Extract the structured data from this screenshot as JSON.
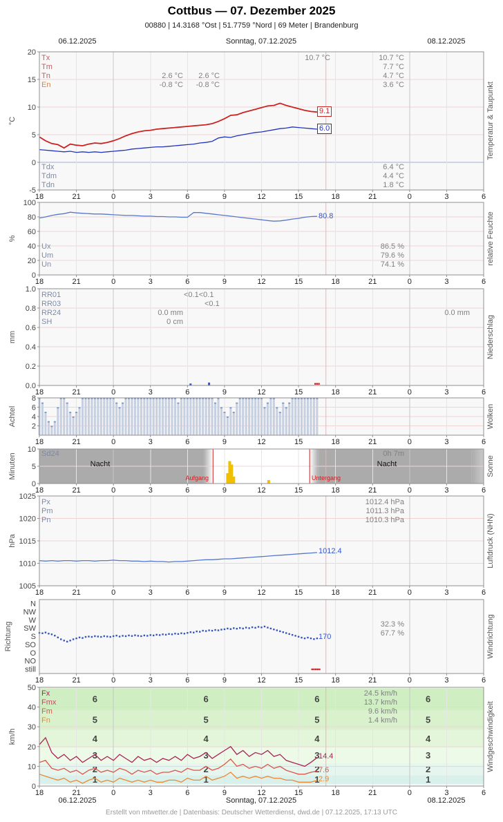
{
  "header": {
    "title": "Cottbus  —  07. Dezember 2025",
    "subtitle": "00880  |  14.3168 °Ost  |  51.7759 °Nord  |  69 Meter  |  Brandenburg"
  },
  "date_axis": {
    "left": "06.12.2025",
    "center": "Sonntag, 07.12.2025",
    "right": "08.12.2025"
  },
  "footer": "Erstellt von mtwetter.de | Datenbasis: Deutscher Wetterdienst, dwd.de | 07.12.2025, 17:13 UTC",
  "x_tick_hours": [
    0,
    3,
    6,
    9,
    12,
    15,
    18,
    21,
    24,
    27,
    30,
    33,
    36
  ],
  "x_tick_labels": [
    "18",
    "21",
    "0",
    "3",
    "6",
    "9",
    "12",
    "15",
    "18",
    "21",
    "0",
    "3",
    "6"
  ],
  "now_line_hour": 23.22,
  "colors": {
    "temperature": "#cc2222",
    "dewpoint": "#2233bb",
    "humidity_line": "#5577cc",
    "pressure_line": "#5577cc",
    "wind_direction_dot": "#3355bb",
    "gust": "#aa2255",
    "mean_wind": "#dd5544",
    "min_wind": "#ee8833",
    "sun_bar": "#f0c000",
    "cloud_bar": "#c7d0e0",
    "cloud_cap": "#7b96c8",
    "now_line": "#ffaaaa",
    "night": "#ababab",
    "accent_red": "#cc2222"
  },
  "chart_data": [
    {
      "id": "temperature",
      "type": "line",
      "title": "Temperatur & Taupunkt",
      "ylabel": "°C",
      "ylim": [
        -5,
        20
      ],
      "yticks": [
        -5,
        0,
        5,
        10,
        15,
        20
      ],
      "x_step_hours": 0.5,
      "series": [
        {
          "name": "Temperatur",
          "color": "#cc2222",
          "end_label": "9.1",
          "values": [
            4.6,
            3.9,
            3.4,
            3.2,
            2.6,
            3.3,
            3.1,
            3.0,
            3.3,
            3.5,
            3.4,
            3.6,
            3.9,
            4.3,
            4.8,
            5.2,
            5.5,
            5.7,
            5.8,
            6.0,
            6.1,
            6.2,
            6.3,
            6.4,
            6.5,
            6.6,
            6.7,
            6.8,
            7.0,
            7.4,
            7.9,
            8.5,
            8.6,
            9.0,
            9.3,
            9.6,
            9.9,
            10.2,
            10.3,
            10.7,
            10.3,
            10.0,
            9.7,
            9.4,
            9.2,
            9.1
          ]
        },
        {
          "name": "Taupunkt",
          "color": "#2233bb",
          "end_label": "6.0",
          "values": [
            2.3,
            2.2,
            2.1,
            2.0,
            1.9,
            2.0,
            1.8,
            1.9,
            1.8,
            1.9,
            1.8,
            1.9,
            2.0,
            2.1,
            2.2,
            2.4,
            2.5,
            2.6,
            2.7,
            2.8,
            2.8,
            2.9,
            3.0,
            3.1,
            3.2,
            3.3,
            3.5,
            3.6,
            3.8,
            4.4,
            4.6,
            4.5,
            4.8,
            5.0,
            5.2,
            5.4,
            5.5,
            5.7,
            5.9,
            6.1,
            6.2,
            6.4,
            6.3,
            6.2,
            6.1,
            6.0
          ]
        }
      ],
      "legend": [
        {
          "label": "Tx",
          "now": "10.7 °C",
          "day": "10.7 °C"
        },
        {
          "label": "Tm",
          "day": "7.7 °C"
        },
        {
          "label": "Tn",
          "a": "2.6 °C",
          "b": "2.6 °C",
          "day": "4.7 °C"
        },
        {
          "label": "En",
          "a": "-0.8 °C",
          "b": "-0.8 °C",
          "day": "3.6 °C"
        }
      ],
      "legend_dewpoint": [
        {
          "label": "Tdx",
          "day": "6.4 °C"
        },
        {
          "label": "Tdm",
          "day": "4.4 °C"
        },
        {
          "label": "Tdn",
          "day": "1.8 °C"
        }
      ]
    },
    {
      "id": "humidity",
      "type": "line",
      "title": "relative Feuchte",
      "ylabel": "%",
      "ylim": [
        0,
        100
      ],
      "yticks": [
        0,
        20,
        40,
        60,
        80,
        100
      ],
      "x_step_hours": 0.5,
      "series": [
        {
          "name": "relative Feuchte",
          "color": "#5577cc",
          "end_label": "80.8",
          "values": [
            78.5,
            80,
            82,
            83.5,
            84.5,
            86.5,
            85.5,
            85,
            84.5,
            84,
            84,
            83.5,
            83,
            82.5,
            82,
            82,
            81.5,
            81,
            81,
            80.5,
            80.5,
            80,
            80,
            79.5,
            79.5,
            86,
            86,
            85,
            84,
            83,
            82,
            81,
            80,
            79,
            78,
            77,
            76,
            75,
            74.1,
            74.5,
            75.5,
            77,
            78,
            79.5,
            80.5,
            80.8
          ]
        }
      ],
      "legend": [
        {
          "label": "Ux",
          "day": "86.5 %"
        },
        {
          "label": "Um",
          "day": "79.6 %"
        },
        {
          "label": "Un",
          "day": "74.1 %"
        }
      ]
    },
    {
      "id": "precipitation",
      "type": "bar",
      "title": "Niederschlag",
      "ylabel": "mm",
      "ylim": [
        0,
        1
      ],
      "yticks": [
        0,
        0.2,
        0.4,
        0.6,
        0.8,
        1
      ],
      "bars": [
        {
          "t": 12.25,
          "v": 0.02
        },
        {
          "t": 13.75,
          "v": 0.03
        }
      ],
      "now_marks_hours": [
        22.35,
        22.5,
        22.65
      ],
      "legend": [
        {
          "label": "RR01",
          "mid": "<0.1<0.1"
        },
        {
          "label": "RR03",
          "mid": "<0.1"
        },
        {
          "label": "RR24",
          "left": "0.0 mm",
          "right": "0.0 mm"
        },
        {
          "label": "SH",
          "left": "0 cm"
        }
      ]
    },
    {
      "id": "clouds",
      "type": "bar",
      "title": "Wolken",
      "ylabel": "Achtel",
      "ylim": [
        0,
        8
      ],
      "yticks": [
        2,
        4,
        6,
        8
      ],
      "x_step_hours": 0.25,
      "values": [
        8,
        7,
        5,
        3,
        2,
        3,
        6,
        8,
        8,
        7,
        5,
        4,
        5,
        6,
        8,
        8,
        8,
        8,
        8,
        8,
        8,
        8,
        8,
        8,
        8,
        7,
        6,
        7,
        8,
        8,
        8,
        8,
        8,
        8,
        8,
        8,
        8,
        8,
        8,
        8,
        8,
        8,
        8,
        8,
        8,
        7,
        8,
        8,
        8,
        8,
        8,
        8,
        8,
        8,
        8,
        8,
        8,
        7,
        8,
        6,
        5,
        4,
        6,
        5,
        7,
        8,
        8,
        8,
        8,
        8,
        8,
        8,
        8,
        6,
        7,
        8,
        8,
        6,
        5,
        7,
        6,
        7,
        8,
        8,
        8,
        8,
        8,
        8,
        8,
        8,
        8
      ]
    },
    {
      "id": "sun",
      "type": "bar",
      "title": "Sonne",
      "ylabel": "Minuten",
      "ylim": [
        0,
        10
      ],
      "yticks": [
        0,
        5,
        10
      ],
      "sd24_label": "Sd24",
      "sd24_value": "0h 7m",
      "night_label": "Nacht",
      "sunrise_label": "Aufgang",
      "sunset_label": "Untergang",
      "sun_times": {
        "dawn_start": 13.3,
        "sunrise_hour": 14.07,
        "sunset_hour": 21.9,
        "dusk_end": 22.63
      },
      "bars": [
        {
          "t": 15.25,
          "v": 3
        },
        {
          "t": 15.42,
          "v": 6.5
        },
        {
          "t": 15.58,
          "v": 5.5
        },
        {
          "t": 15.75,
          "v": 2
        },
        {
          "t": 18.58,
          "v": 1
        }
      ]
    },
    {
      "id": "pressure",
      "type": "line",
      "title": "Luftdruck (NHN)",
      "ylabel": "hPa",
      "ylim": [
        1005,
        1025
      ],
      "yticks": [
        1005,
        1010,
        1015,
        1020,
        1025
      ],
      "x_step_hours": 0.5,
      "series": [
        {
          "name": "Luftdruck",
          "color": "#5577cc",
          "end_label": "1012.4",
          "values": [
            1010.6,
            1010.5,
            1010.6,
            1010.5,
            1010.6,
            1010.6,
            1010.5,
            1010.6,
            1010.6,
            1010.5,
            1010.6,
            1010.6,
            1010.7,
            1010.6,
            1010.6,
            1010.5,
            1010.5,
            1010.4,
            1010.5,
            1010.4,
            1010.4,
            1010.3,
            1010.4,
            1010.4,
            1010.5,
            1010.6,
            1010.7,
            1010.8,
            1010.8,
            1010.9,
            1011.0,
            1011.0,
            1011.1,
            1011.2,
            1011.3,
            1011.4,
            1011.5,
            1011.6,
            1011.7,
            1011.8,
            1011.9,
            1012.0,
            1012.1,
            1012.2,
            1012.3,
            1012.4
          ]
        }
      ],
      "legend": [
        {
          "label": "Px",
          "day": "1012.4 hPa"
        },
        {
          "label": "Pm",
          "day": "1011.3 hPa"
        },
        {
          "label": "Pn",
          "day": "1010.3 hPa"
        }
      ]
    },
    {
      "id": "wind_direction",
      "type": "scatter",
      "title": "Windrichtung",
      "ylabel": "Richtung",
      "categories": [
        "N",
        "NW",
        "W",
        "SW",
        "S",
        "SO",
        "O",
        "NO",
        "still"
      ],
      "x_step_hours": 0.25,
      "point_color": "#3355bb",
      "end_label": "170",
      "values_deg": [
        200,
        198,
        202,
        196,
        192,
        185,
        175,
        165,
        158,
        152,
        158,
        165,
        170,
        175,
        172,
        178,
        180,
        178,
        182,
        180,
        178,
        182,
        180,
        178,
        182,
        185,
        180,
        184,
        182,
        186,
        183,
        187,
        184,
        182,
        186,
        184,
        188,
        186,
        190,
        188,
        192,
        190,
        194,
        192,
        196,
        194,
        198,
        196,
        200,
        204,
        202,
        208,
        206,
        212,
        210,
        214,
        212,
        216,
        214,
        218,
        220,
        224,
        221,
        226,
        223,
        227,
        224,
        229,
        226,
        231,
        228,
        233,
        230,
        235,
        229,
        224,
        219,
        214,
        209,
        204,
        199,
        194,
        189,
        184,
        179,
        174,
        170,
        174,
        170,
        166,
        170
      ],
      "calm_marks_hours": [
        22.1,
        22.25,
        22.4,
        22.55,
        22.7
      ],
      "stats": [
        {
          "value": "32.3 %"
        },
        {
          "value": "67.7 %"
        }
      ]
    },
    {
      "id": "wind_speed",
      "type": "line",
      "title": "Windgeschwindigkeit",
      "ylabel": "km/h",
      "ylim": [
        0,
        50
      ],
      "yticks": [
        0,
        10,
        20,
        30,
        40,
        50
      ],
      "x_step_hours": 0.5,
      "series": [
        {
          "name": "Fx (Böen)",
          "color": "#aa2255",
          "end_label": "14.4",
          "values": [
            21,
            24.5,
            17,
            14,
            16,
            13,
            15,
            12,
            14,
            16,
            13,
            15,
            13,
            16,
            14,
            12,
            15,
            13,
            14,
            12,
            14,
            13,
            15,
            13,
            16,
            14,
            15,
            17,
            14,
            16,
            18,
            20,
            16,
            18,
            15,
            17,
            16,
            18,
            15,
            16,
            13,
            12,
            11,
            10,
            12,
            14.4
          ]
        },
        {
          "name": "Fm (Mittelwind)",
          "color": "#dd5544",
          "end_label": "7.6",
          "values": [
            12,
            13,
            9,
            8,
            9,
            7,
            8,
            6,
            8,
            9,
            7,
            8,
            7,
            9,
            8,
            6,
            8,
            7,
            8,
            6,
            7,
            7,
            8,
            7,
            9,
            8,
            8,
            10,
            8,
            9,
            11,
            13.7,
            10,
            11,
            9,
            10,
            9,
            11,
            9,
            10,
            8,
            7,
            6,
            6,
            7,
            7.6
          ]
        },
        {
          "name": "Fn (Minimum)",
          "color": "#ee8833",
          "end_label": "2.9",
          "values": [
            6,
            5,
            4,
            3,
            4,
            2,
            3,
            1.4,
            3,
            4,
            2,
            3,
            2,
            4,
            3,
            2,
            3,
            2,
            3,
            2,
            2,
            3,
            3,
            2,
            4,
            3,
            3,
            5,
            3,
            4,
            5,
            7,
            4,
            5,
            4,
            5,
            4,
            5,
            4,
            4,
            3,
            3,
            2,
            2,
            2,
            2.9
          ]
        }
      ],
      "legend": [
        {
          "label": "Fx",
          "value": "24.5 km/h"
        },
        {
          "label": "Fmx",
          "value": "13.7 km/h"
        },
        {
          "label": "Fm",
          "value": "9.6 km/h"
        },
        {
          "label": "Fn",
          "value": "1.4 km/h"
        }
      ],
      "beaufort_bands": [
        {
          "bft": "1",
          "range": [
            1,
            5.5
          ],
          "color": "#d9f1ea",
          "label_color": "#96c9bf"
        },
        {
          "bft": "2",
          "range": [
            5.5,
            11.5
          ],
          "color": "#e6f6ef",
          "label_color": "#96c9bf"
        },
        {
          "bft": "3",
          "range": [
            11.5,
            19.5
          ],
          "color": "#eefae8",
          "label_color": "#a3cf8e"
        },
        {
          "bft": "4",
          "range": [
            19.5,
            28.5
          ],
          "color": "#e4f6da",
          "label_color": "#a3cf8e"
        },
        {
          "bft": "5",
          "range": [
            28.5,
            38.5
          ],
          "color": "#d9f2cd",
          "label_color": "#a3cf8e"
        },
        {
          "bft": "6",
          "range": [
            38.5,
            49.5
          ],
          "color": "#cfeec2",
          "label_color": "#a3cf8e"
        }
      ],
      "beaufort_label_cols_hours": [
        4.5,
        13.5,
        22.5,
        31.5
      ]
    }
  ]
}
